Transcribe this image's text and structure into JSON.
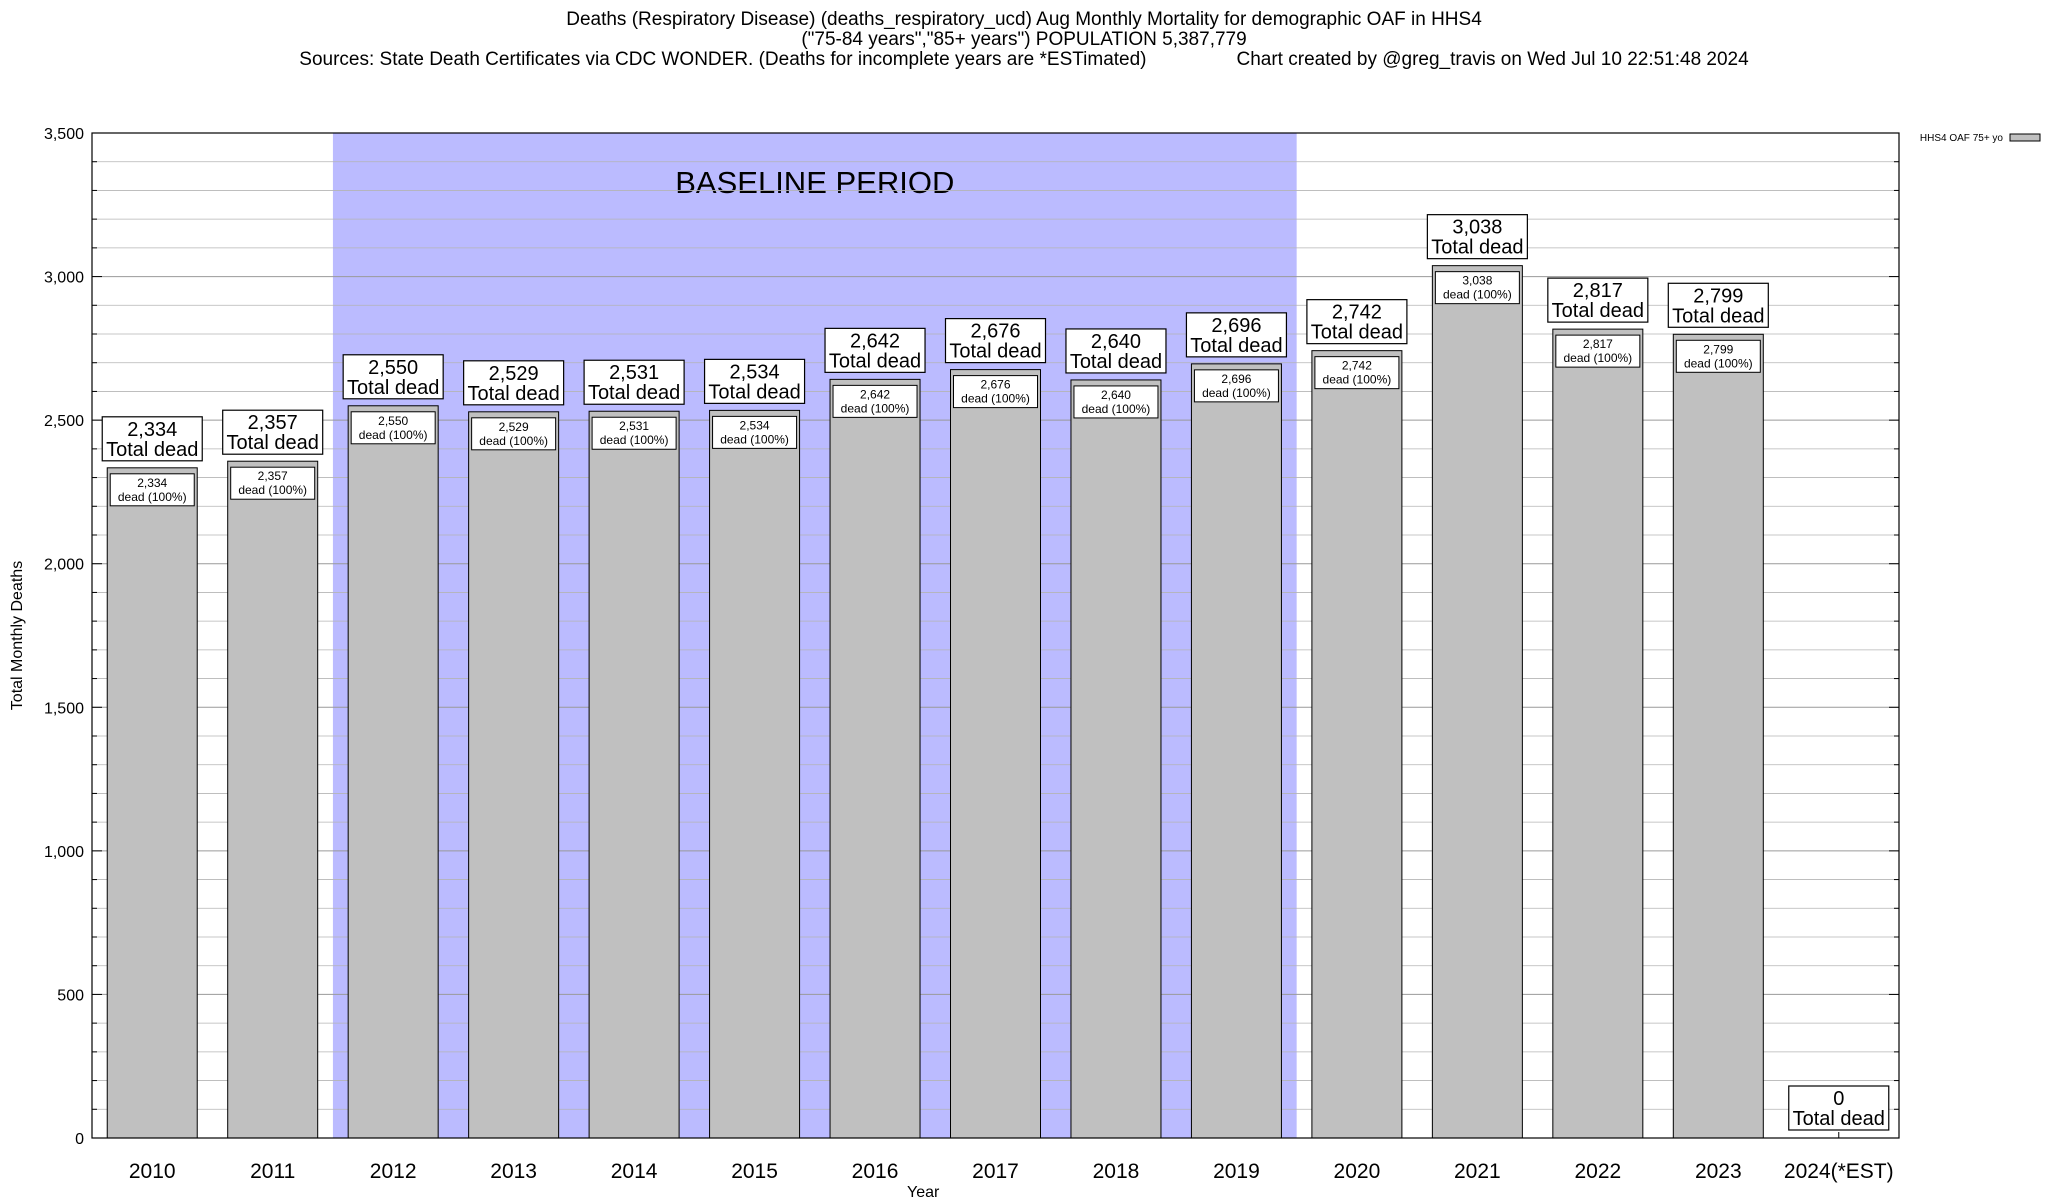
{
  "title": {
    "line1": "Deaths (Respiratory Disease) (deaths_respiratory_ucd) Aug Monthly Mortality for demographic OAF in HHS4",
    "line2": "(\"75-84 years\",\"85+ years\") POPULATION 5,387,779",
    "line3_source": "Sources: State Death Certificates via CDC WONDER. (Deaths for incomplete years are *ESTimated)",
    "line3_credit": "Chart created by @greg_travis on Wed Jul 10 22:51:48 2024"
  },
  "chart_data": {
    "type": "bar",
    "xlabel": "Year",
    "ylabel": "Total Monthly Deaths",
    "ylim": [
      0,
      3500
    ],
    "y_ticks": [
      0,
      500,
      1000,
      1500,
      2000,
      2500,
      3000,
      3500
    ],
    "y_tick_labels": [
      "0",
      "500",
      "1,000",
      "1,500",
      "2,000",
      "2,500",
      "3,000",
      "3,500"
    ],
    "grid": true,
    "legend": {
      "placement": "top-right",
      "entries": [
        "HHS4 OAF 75+ yo"
      ]
    },
    "colors": {
      "bar": "#c0c0c0",
      "baseline_band": "#bbbbff",
      "grid": "#b4b4b4"
    },
    "categories": [
      "2010",
      "2011",
      "2012",
      "2013",
      "2014",
      "2015",
      "2016",
      "2017",
      "2018",
      "2019",
      "2020",
      "2021",
      "2022",
      "2023",
      "2024(*EST)"
    ],
    "series": [
      {
        "name": "HHS4 OAF 75+ yo",
        "values": [
          2334,
          2357,
          2550,
          2529,
          2531,
          2534,
          2642,
          2676,
          2640,
          2696,
          2742,
          3038,
          2817,
          2799,
          0
        ]
      }
    ],
    "top_labels": [
      "2,334",
      "2,357",
      "2,550",
      "2,529",
      "2,531",
      "2,534",
      "2,642",
      "2,676",
      "2,640",
      "2,696",
      "2,742",
      "3,038",
      "2,817",
      "2,799",
      "0"
    ],
    "top_label_suffix": "Total dead",
    "inner_labels": [
      "2,334",
      "2,357",
      "2,550",
      "2,529",
      "2,531",
      "2,534",
      "2,642",
      "2,676",
      "2,640",
      "2,696",
      "2,742",
      "3,038",
      "2,817",
      "2,799",
      ""
    ],
    "inner_label_suffix": "dead (100%)",
    "annotation": {
      "text": "BASELINE PERIOD",
      "from_category": "2012",
      "to_category": "2019"
    }
  }
}
